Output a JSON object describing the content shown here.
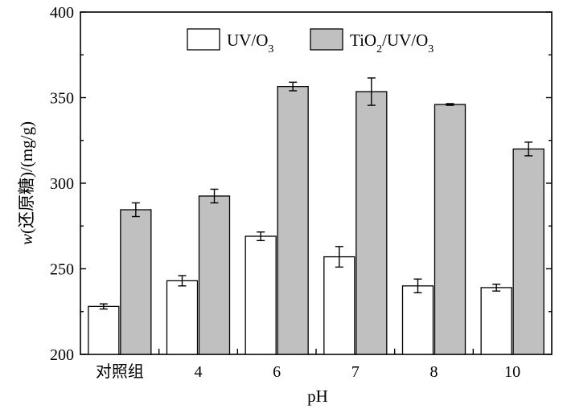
{
  "chart_data": {
    "type": "bar",
    "categories": [
      "对照组",
      "4",
      "6",
      "7",
      "8",
      "10"
    ],
    "series": [
      {
        "name": "UV/O3",
        "values": [
          228,
          243,
          269,
          257,
          240,
          239
        ],
        "errors": [
          1.5,
          3,
          2.5,
          6,
          4,
          2
        ],
        "color": "#ffffff"
      },
      {
        "name": "TiO2/UV/O3",
        "values": [
          284.5,
          292.5,
          356.5,
          353.5,
          346,
          320
        ],
        "errors": [
          4,
          4,
          2.5,
          8,
          0.5,
          4
        ],
        "color": "#c0c0c0"
      }
    ],
    "xlabel": "pH",
    "ylabel": "w(还原糖)/(mg/g)",
    "ylim": [
      200,
      400
    ],
    "yticks": [
      200,
      250,
      300,
      350,
      400
    ],
    "legend_position": "top-right",
    "grid": false
  }
}
